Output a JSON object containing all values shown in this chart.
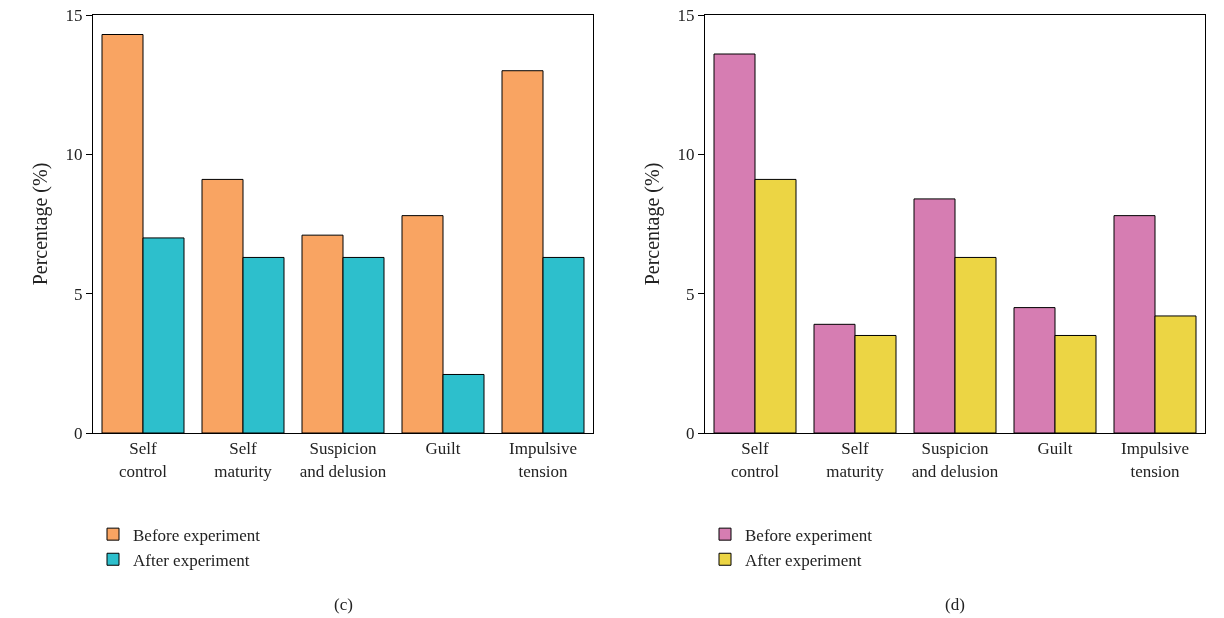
{
  "chart_data": [
    {
      "type": "bar",
      "ylabel": "Percentage (%)",
      "categories": [
        "Self control",
        "Self maturity",
        "Suspicion and delusion",
        "Guilt",
        "Impulsive tension"
      ],
      "ylim": [
        0,
        15
      ],
      "yticks": [
        0,
        5,
        10,
        15
      ],
      "grid": false,
      "legend": "bottom left",
      "annotations": [
        "(c)"
      ],
      "series": [
        {
          "name": "Before experiment",
          "color": "#f9a462",
          "values": [
            14.3,
            9.1,
            7.1,
            7.8,
            13.0
          ]
        },
        {
          "name": "After experiment",
          "color": "#2dbfcc",
          "values": [
            7.0,
            6.3,
            6.3,
            2.1,
            6.3
          ]
        }
      ]
    },
    {
      "type": "bar",
      "ylabel": "Percentage (%)",
      "categories": [
        "Self control",
        "Self maturity",
        "Suspicion and delusion",
        "Guilt",
        "Impulsive tension"
      ],
      "ylim": [
        0,
        15
      ],
      "yticks": [
        0,
        5,
        10,
        15
      ],
      "grid": false,
      "legend": "bottom left",
      "annotations": [
        "(d)"
      ],
      "series": [
        {
          "name": "Before experiment",
          "color": "#d67db2",
          "values": [
            13.6,
            3.9,
            8.4,
            4.5,
            7.8
          ]
        },
        {
          "name": "After experiment",
          "color": "#ecd544",
          "values": [
            9.1,
            3.5,
            6.3,
            3.5,
            4.2
          ]
        }
      ]
    }
  ]
}
